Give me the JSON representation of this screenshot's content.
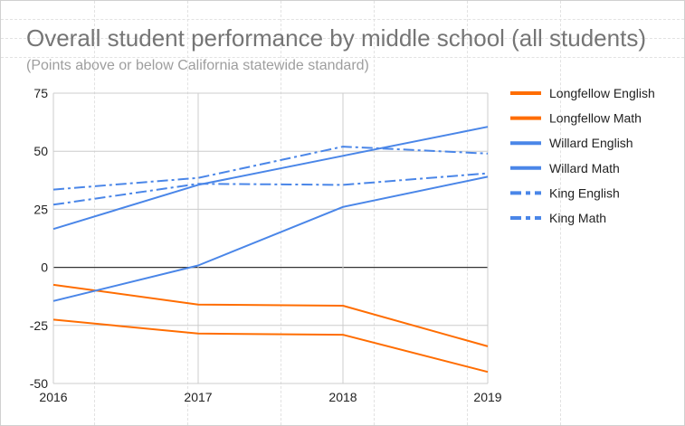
{
  "chart_data": {
    "type": "line",
    "title": "Overall student performance by middle school (all students)",
    "subtitle": "(Points above or below California statewide standard)",
    "xlabel": "",
    "ylabel": "",
    "x": [
      "2016",
      "2017",
      "2018",
      "2019"
    ],
    "ylim": [
      -50,
      75
    ],
    "yticks": [
      "75",
      "50",
      "25",
      "0",
      "-25",
      "-50"
    ],
    "grid": true,
    "legend_position": "right",
    "series": [
      {
        "name": "Longfellow English",
        "values": [
          -7.5,
          -16,
          -16.5,
          -34
        ],
        "color": "#ff6d01",
        "dash": "solid"
      },
      {
        "name": "Longfellow Math",
        "values": [
          -22.5,
          -28.5,
          -29,
          -45
        ],
        "color": "#ff6d01",
        "dash": "solid"
      },
      {
        "name": "Willard English",
        "values": [
          16.5,
          35.5,
          48,
          60.5
        ],
        "color": "#4a86e8",
        "dash": "solid"
      },
      {
        "name": "Willard Math",
        "values": [
          -14.5,
          0.8,
          26,
          39
        ],
        "color": "#4a86e8",
        "dash": "solid"
      },
      {
        "name": "King English",
        "values": [
          33.5,
          38.5,
          52,
          49
        ],
        "color": "#4a86e8",
        "dash": "dashdot"
      },
      {
        "name": "King Math",
        "values": [
          27,
          36,
          35.5,
          40.5
        ],
        "color": "#4a86e8",
        "dash": "dashdot"
      }
    ]
  }
}
